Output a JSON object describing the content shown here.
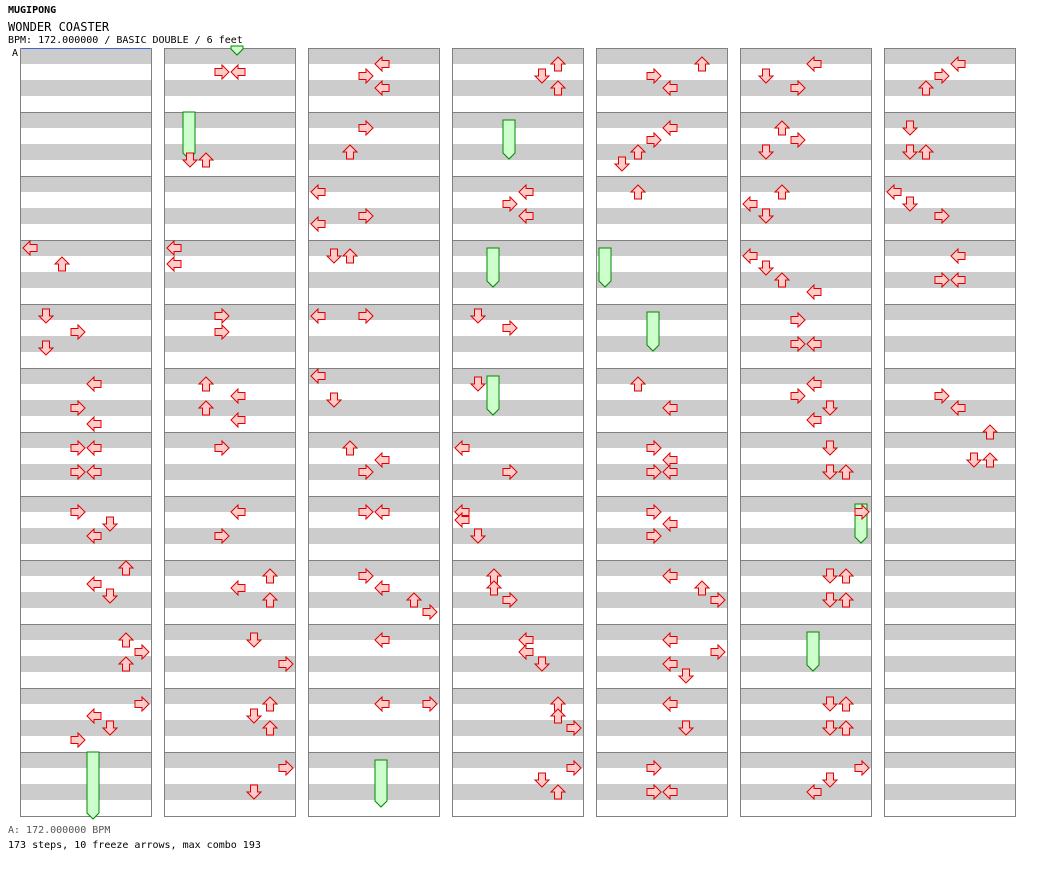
{
  "header": {
    "artist": "MUGIPONG",
    "title": "WONDER COASTER",
    "bpm_line": "BPM: 172.000000 / BASIC DOUBLE / 6 feet",
    "marker": "A"
  },
  "footer": {
    "bpm_info": "A: 172.000000 BPM",
    "stats": "173 steps, 10 freeze arrows, max combo 193"
  },
  "colors": {
    "stripe": "#cccccc",
    "border": "#808080",
    "arrow_fill": "#ffcccc",
    "arrow_stroke": "#dd0000",
    "freeze_fill": "#ccffcc",
    "freeze_stroke": "#008800"
  },
  "chart_data": {
    "type": "step-chart",
    "mode": "BASIC DOUBLE",
    "columns": 7,
    "measures_per_column": 12,
    "lanes": 8,
    "lane_order": [
      "L",
      "D",
      "U",
      "R",
      "L",
      "D",
      "U",
      "R"
    ],
    "row_unit": "1/16 of measure index (measure*16 + row)",
    "columns_data": [
      {
        "notes": [
          [
            48,
            0,
            "L"
          ],
          [
            52,
            2,
            "U"
          ],
          [
            65,
            1,
            "D"
          ],
          [
            69,
            3,
            "R"
          ],
          [
            73,
            1,
            "D"
          ],
          [
            82,
            4,
            "L"
          ],
          [
            88,
            3,
            "R"
          ],
          [
            92,
            4,
            "L"
          ],
          [
            98,
            3,
            "R"
          ],
          [
            98,
            4,
            "L"
          ],
          [
            104,
            3,
            "R"
          ],
          [
            104,
            4,
            "L"
          ],
          [
            114,
            3,
            "R"
          ],
          [
            117,
            5,
            "D"
          ],
          [
            120,
            4,
            "L"
          ],
          [
            128,
            6,
            "U"
          ],
          [
            132,
            4,
            "L"
          ],
          [
            135,
            5,
            "D"
          ],
          [
            146,
            6,
            "U"
          ],
          [
            149,
            7,
            "R"
          ],
          [
            152,
            6,
            "U"
          ],
          [
            162,
            7,
            "R"
          ],
          [
            165,
            4,
            "L"
          ],
          [
            168,
            5,
            "D"
          ],
          [
            171,
            3,
            "R"
          ]
        ],
        "freezes": [
          [
            176,
            4,
            192
          ]
        ]
      },
      {
        "notes": [
          [
            4,
            3,
            "R"
          ],
          [
            4,
            4,
            "L"
          ],
          [
            26,
            1,
            "D"
          ],
          [
            26,
            2,
            "U"
          ],
          [
            48,
            0,
            "L"
          ],
          [
            52,
            0,
            "L"
          ],
          [
            65,
            3,
            "R"
          ],
          [
            69,
            3,
            "R"
          ],
          [
            82,
            2,
            "U"
          ],
          [
            85,
            4,
            "L"
          ],
          [
            88,
            2,
            "U"
          ],
          [
            91,
            4,
            "L"
          ],
          [
            98,
            3,
            "R"
          ],
          [
            114,
            4,
            "L"
          ],
          [
            120,
            3,
            "R"
          ],
          [
            130,
            6,
            "U"
          ],
          [
            133,
            4,
            "L"
          ],
          [
            136,
            6,
            "U"
          ],
          [
            146,
            5,
            "D"
          ],
          [
            152,
            7,
            "R"
          ],
          [
            162,
            6,
            "U"
          ],
          [
            165,
            5,
            "D"
          ],
          [
            168,
            6,
            "U"
          ],
          [
            178,
            7,
            "R"
          ],
          [
            184,
            5,
            "D"
          ]
        ],
        "freezes": [
          [
            -1,
            4,
            1
          ],
          [
            16,
            1,
            27
          ]
        ]
      },
      {
        "notes": [
          [
            2,
            4,
            "L"
          ],
          [
            5,
            3,
            "R"
          ],
          [
            8,
            4,
            "L"
          ],
          [
            18,
            3,
            "R"
          ],
          [
            24,
            2,
            "U"
          ],
          [
            34,
            0,
            "L"
          ],
          [
            40,
            3,
            "R"
          ],
          [
            42,
            0,
            "L"
          ],
          [
            50,
            1,
            "D"
          ],
          [
            50,
            2,
            "U"
          ],
          [
            65,
            0,
            "L"
          ],
          [
            65,
            3,
            "R"
          ],
          [
            80,
            0,
            "L"
          ],
          [
            86,
            1,
            "D"
          ],
          [
            98,
            2,
            "U"
          ],
          [
            101,
            4,
            "L"
          ],
          [
            104,
            3,
            "R"
          ],
          [
            114,
            3,
            "R"
          ],
          [
            114,
            4,
            "L"
          ],
          [
            130,
            3,
            "R"
          ],
          [
            133,
            4,
            "L"
          ],
          [
            136,
            6,
            "U"
          ],
          [
            139,
            7,
            "R"
          ],
          [
            146,
            4,
            "L"
          ],
          [
            162,
            4,
            "L"
          ],
          [
            162,
            7,
            "R"
          ]
        ],
        "freezes": [
          [
            178,
            4,
            189
          ]
        ]
      },
      {
        "notes": [
          [
            2,
            6,
            "U"
          ],
          [
            5,
            5,
            "D"
          ],
          [
            8,
            6,
            "U"
          ],
          [
            34,
            4,
            "L"
          ],
          [
            37,
            3,
            "R"
          ],
          [
            40,
            4,
            "L"
          ],
          [
            65,
            1,
            "D"
          ],
          [
            68,
            3,
            "R"
          ],
          [
            82,
            1,
            "D"
          ],
          [
            98,
            0,
            "L"
          ],
          [
            104,
            3,
            "R"
          ],
          [
            114,
            0,
            "L"
          ],
          [
            116,
            0,
            "L"
          ],
          [
            120,
            1,
            "D"
          ],
          [
            130,
            2,
            "U"
          ],
          [
            133,
            2,
            "U"
          ],
          [
            136,
            3,
            "R"
          ],
          [
            146,
            4,
            "L"
          ],
          [
            149,
            4,
            "L"
          ],
          [
            152,
            5,
            "D"
          ],
          [
            162,
            6,
            "U"
          ],
          [
            165,
            6,
            "U"
          ],
          [
            168,
            7,
            "R"
          ],
          [
            178,
            7,
            "R"
          ],
          [
            181,
            5,
            "D"
          ],
          [
            184,
            6,
            "U"
          ]
        ],
        "freezes": [
          [
            18,
            3,
            27
          ],
          [
            50,
            2,
            59
          ],
          [
            82,
            2,
            91
          ]
        ]
      },
      {
        "notes": [
          [
            2,
            6,
            "U"
          ],
          [
            5,
            3,
            "R"
          ],
          [
            8,
            4,
            "L"
          ],
          [
            18,
            4,
            "L"
          ],
          [
            21,
            3,
            "R"
          ],
          [
            24,
            2,
            "U"
          ],
          [
            27,
            1,
            "D"
          ],
          [
            34,
            2,
            "U"
          ],
          [
            82,
            2,
            "U"
          ],
          [
            88,
            4,
            "L"
          ],
          [
            98,
            3,
            "R"
          ],
          [
            101,
            4,
            "L"
          ],
          [
            104,
            3,
            "R"
          ],
          [
            104,
            4,
            "L"
          ],
          [
            114,
            3,
            "R"
          ],
          [
            117,
            4,
            "L"
          ],
          [
            120,
            3,
            "R"
          ],
          [
            130,
            4,
            "L"
          ],
          [
            133,
            6,
            "U"
          ],
          [
            136,
            7,
            "R"
          ],
          [
            146,
            4,
            "L"
          ],
          [
            149,
            7,
            "R"
          ],
          [
            152,
            4,
            "L"
          ],
          [
            155,
            5,
            "D"
          ],
          [
            162,
            4,
            "L"
          ],
          [
            168,
            5,
            "D"
          ],
          [
            178,
            3,
            "R"
          ],
          [
            184,
            3,
            "R"
          ],
          [
            184,
            4,
            "L"
          ]
        ],
        "freezes": [
          [
            50,
            0,
            59
          ],
          [
            66,
            3,
            75
          ]
        ]
      },
      {
        "notes": [
          [
            2,
            4,
            "L"
          ],
          [
            5,
            1,
            "D"
          ],
          [
            8,
            3,
            "R"
          ],
          [
            18,
            2,
            "U"
          ],
          [
            21,
            3,
            "R"
          ],
          [
            24,
            1,
            "D"
          ],
          [
            34,
            2,
            "U"
          ],
          [
            37,
            0,
            "L"
          ],
          [
            40,
            1,
            "D"
          ],
          [
            50,
            0,
            "L"
          ],
          [
            53,
            1,
            "D"
          ],
          [
            56,
            2,
            "U"
          ],
          [
            59,
            4,
            "L"
          ],
          [
            66,
            3,
            "R"
          ],
          [
            72,
            3,
            "R"
          ],
          [
            72,
            4,
            "L"
          ],
          [
            82,
            4,
            "L"
          ],
          [
            85,
            3,
            "R"
          ],
          [
            88,
            5,
            "D"
          ],
          [
            91,
            4,
            "L"
          ],
          [
            98,
            5,
            "D"
          ],
          [
            104,
            5,
            "D"
          ],
          [
            104,
            6,
            "U"
          ],
          [
            114,
            7,
            "R"
          ],
          [
            130,
            5,
            "D"
          ],
          [
            130,
            6,
            "U"
          ],
          [
            136,
            5,
            "D"
          ],
          [
            136,
            6,
            "U"
          ],
          [
            162,
            5,
            "D"
          ],
          [
            162,
            6,
            "U"
          ],
          [
            168,
            5,
            "D"
          ],
          [
            168,
            6,
            "U"
          ],
          [
            178,
            7,
            "R"
          ],
          [
            181,
            5,
            "D"
          ],
          [
            184,
            4,
            "L"
          ]
        ],
        "freezes": [
          [
            114,
            7,
            123
          ],
          [
            146,
            4,
            155
          ]
        ]
      },
      {
        "notes": [
          [
            2,
            4,
            "L"
          ],
          [
            5,
            3,
            "R"
          ],
          [
            8,
            2,
            "U"
          ],
          [
            18,
            1,
            "D"
          ],
          [
            24,
            1,
            "D"
          ],
          [
            24,
            2,
            "U"
          ],
          [
            34,
            0,
            "L"
          ],
          [
            37,
            1,
            "D"
          ],
          [
            40,
            3,
            "R"
          ],
          [
            50,
            4,
            "L"
          ],
          [
            56,
            3,
            "R"
          ],
          [
            56,
            4,
            "L"
          ],
          [
            85,
            3,
            "R"
          ],
          [
            88,
            4,
            "L"
          ],
          [
            94,
            6,
            "U"
          ],
          [
            101,
            5,
            "D"
          ],
          [
            101,
            6,
            "U"
          ]
        ],
        "freezes": []
      }
    ]
  }
}
